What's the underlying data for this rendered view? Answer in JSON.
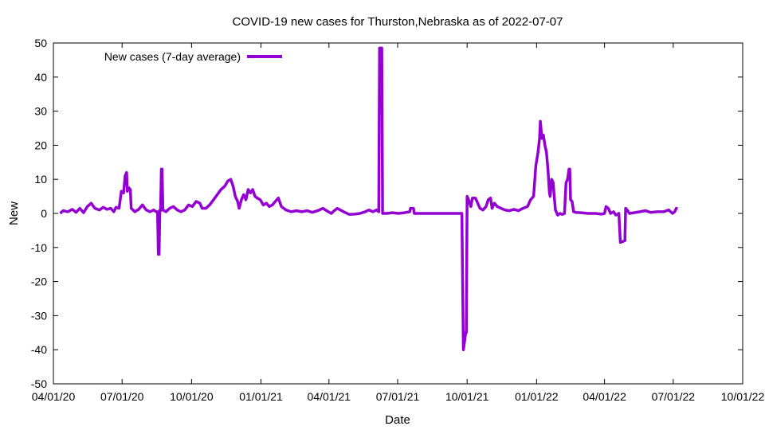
{
  "chart_data": {
    "type": "line",
    "title": "COVID-19 new cases for Thurston,Nebraska as of 2022-07-07",
    "xlabel": "Date",
    "ylabel": "New",
    "ylim": [
      -50,
      50
    ],
    "xlim": [
      "2020-04-01",
      "2022-10-01"
    ],
    "y_ticks": [
      -50,
      -40,
      -30,
      -20,
      -10,
      0,
      10,
      20,
      30,
      40,
      50
    ],
    "x_ticks": [
      {
        "date": "2020-04-01",
        "label": "04/01/20"
      },
      {
        "date": "2020-07-01",
        "label": "07/01/20"
      },
      {
        "date": "2020-10-01",
        "label": "10/01/20"
      },
      {
        "date": "2021-01-01",
        "label": "01/01/21"
      },
      {
        "date": "2021-04-01",
        "label": "04/01/21"
      },
      {
        "date": "2021-07-01",
        "label": "07/01/21"
      },
      {
        "date": "2021-10-01",
        "label": "10/01/21"
      },
      {
        "date": "2022-01-01",
        "label": "01/01/22"
      },
      {
        "date": "2022-04-01",
        "label": "04/01/22"
      },
      {
        "date": "2022-07-01",
        "label": "07/01/22"
      },
      {
        "date": "2022-10-01",
        "label": "10/01/22"
      }
    ],
    "grid": false,
    "legend_position": "top-left",
    "series": [
      {
        "name": "New cases (7-day average)",
        "color": "#9400d3",
        "points": [
          [
            "2020-04-10",
            0.0
          ],
          [
            "2020-04-14",
            0.8
          ],
          [
            "2020-04-20",
            0.5
          ],
          [
            "2020-04-26",
            1.2
          ],
          [
            "2020-05-01",
            0.3
          ],
          [
            "2020-05-06",
            1.5
          ],
          [
            "2020-05-11",
            0.2
          ],
          [
            "2020-05-16",
            2.0
          ],
          [
            "2020-05-21",
            3.0
          ],
          [
            "2020-05-26",
            1.5
          ],
          [
            "2020-06-01",
            1.0
          ],
          [
            "2020-06-06",
            1.8
          ],
          [
            "2020-06-11",
            1.2
          ],
          [
            "2020-06-16",
            1.5
          ],
          [
            "2020-06-20",
            0.5
          ],
          [
            "2020-06-23",
            1.8
          ],
          [
            "2020-06-27",
            1.5
          ],
          [
            "2020-06-30",
            6.5
          ],
          [
            "2020-07-03",
            6.0
          ],
          [
            "2020-07-05",
            11.0
          ],
          [
            "2020-07-07",
            12.0
          ],
          [
            "2020-07-08",
            6.5
          ],
          [
            "2020-07-10",
            7.5
          ],
          [
            "2020-07-12",
            7.0
          ],
          [
            "2020-07-13",
            1.5
          ],
          [
            "2020-07-18",
            0.5
          ],
          [
            "2020-07-23",
            1.2
          ],
          [
            "2020-07-28",
            2.5
          ],
          [
            "2020-08-02",
            1.0
          ],
          [
            "2020-08-07",
            0.5
          ],
          [
            "2020-08-12",
            1.0
          ],
          [
            "2020-08-15",
            0.5
          ],
          [
            "2020-08-17",
            0.5
          ],
          [
            "2020-08-18",
            -12.0
          ],
          [
            "2020-08-19",
            -12.0
          ],
          [
            "2020-08-20",
            1.0
          ],
          [
            "2020-08-21",
            0.8
          ],
          [
            "2020-08-22",
            13.0
          ],
          [
            "2020-08-23",
            13.0
          ],
          [
            "2020-08-24",
            1.0
          ],
          [
            "2020-08-28",
            0.5
          ],
          [
            "2020-09-02",
            1.5
          ],
          [
            "2020-09-07",
            2.0
          ],
          [
            "2020-09-12",
            1.0
          ],
          [
            "2020-09-17",
            0.5
          ],
          [
            "2020-09-22",
            1.0
          ],
          [
            "2020-09-27",
            2.5
          ],
          [
            "2020-10-02",
            2.0
          ],
          [
            "2020-10-07",
            3.5
          ],
          [
            "2020-10-12",
            3.0
          ],
          [
            "2020-10-15",
            1.5
          ],
          [
            "2020-10-20",
            1.5
          ],
          [
            "2020-10-25",
            2.5
          ],
          [
            "2020-10-30",
            4.0
          ],
          [
            "2020-11-04",
            5.5
          ],
          [
            "2020-11-09",
            7.0
          ],
          [
            "2020-11-14",
            8.0
          ],
          [
            "2020-11-18",
            9.5
          ],
          [
            "2020-11-22",
            10.0
          ],
          [
            "2020-11-25",
            8.0
          ],
          [
            "2020-11-28",
            5.0
          ],
          [
            "2020-12-01",
            3.5
          ],
          [
            "2020-12-03",
            1.5
          ],
          [
            "2020-12-06",
            4.0
          ],
          [
            "2020-12-09",
            5.5
          ],
          [
            "2020-12-12",
            4.0
          ],
          [
            "2020-12-15",
            7.0
          ],
          [
            "2020-12-18",
            6.0
          ],
          [
            "2020-12-21",
            7.0
          ],
          [
            "2020-12-24",
            5.0
          ],
          [
            "2020-12-27",
            4.5
          ],
          [
            "2020-12-31",
            4.0
          ],
          [
            "2021-01-04",
            2.5
          ],
          [
            "2021-01-08",
            3.0
          ],
          [
            "2021-01-12",
            2.0
          ],
          [
            "2021-01-16",
            2.5
          ],
          [
            "2021-01-20",
            3.5
          ],
          [
            "2021-01-24",
            4.5
          ],
          [
            "2021-01-28",
            2.0
          ],
          [
            "2021-02-03",
            1.0
          ],
          [
            "2021-02-10",
            0.5
          ],
          [
            "2021-02-17",
            0.8
          ],
          [
            "2021-02-24",
            0.5
          ],
          [
            "2021-03-03",
            0.8
          ],
          [
            "2021-03-10",
            0.3
          ],
          [
            "2021-03-17",
            0.8
          ],
          [
            "2021-03-24",
            1.5
          ],
          [
            "2021-03-31",
            0.5
          ],
          [
            "2021-04-04",
            0.0
          ],
          [
            "2021-04-08",
            0.8
          ],
          [
            "2021-04-12",
            1.5
          ],
          [
            "2021-04-16",
            1.0
          ],
          [
            "2021-04-22",
            0.3
          ],
          [
            "2021-04-28",
            -0.3
          ],
          [
            "2021-05-05",
            -0.2
          ],
          [
            "2021-05-12",
            0.0
          ],
          [
            "2021-05-19",
            0.5
          ],
          [
            "2021-05-24",
            1.0
          ],
          [
            "2021-05-29",
            0.5
          ],
          [
            "2021-06-03",
            1.0
          ],
          [
            "2021-06-06",
            0.5
          ],
          [
            "2021-06-07",
            48.5
          ],
          [
            "2021-06-10",
            48.5
          ],
          [
            "2021-06-11",
            0.0
          ],
          [
            "2021-06-16",
            0.0
          ],
          [
            "2021-06-24",
            0.2
          ],
          [
            "2021-07-02",
            0.0
          ],
          [
            "2021-07-10",
            0.2
          ],
          [
            "2021-07-17",
            0.5
          ],
          [
            "2021-07-18",
            1.5
          ],
          [
            "2021-07-22",
            1.5
          ],
          [
            "2021-07-23",
            0.0
          ],
          [
            "2021-08-20",
            0.0
          ],
          [
            "2021-09-24",
            0.0
          ],
          [
            "2021-09-26",
            -40.0
          ],
          [
            "2021-09-28",
            -37.0
          ],
          [
            "2021-09-29",
            -35.0
          ],
          [
            "2021-09-30",
            -35.0
          ],
          [
            "2021-10-01",
            5.0
          ],
          [
            "2021-10-03",
            4.0
          ],
          [
            "2021-10-06",
            2.0
          ],
          [
            "2021-10-08",
            4.5
          ],
          [
            "2021-10-12",
            4.5
          ],
          [
            "2021-10-15",
            3.0
          ],
          [
            "2021-10-18",
            1.5
          ],
          [
            "2021-10-22",
            1.0
          ],
          [
            "2021-10-26",
            2.0
          ],
          [
            "2021-10-29",
            4.0
          ],
          [
            "2021-11-01",
            4.5
          ],
          [
            "2021-11-03",
            1.5
          ],
          [
            "2021-11-06",
            3.0
          ],
          [
            "2021-11-10",
            2.0
          ],
          [
            "2021-11-15",
            1.5
          ],
          [
            "2021-11-20",
            1.0
          ],
          [
            "2021-11-26",
            0.8
          ],
          [
            "2021-12-02",
            1.2
          ],
          [
            "2021-12-08",
            0.8
          ],
          [
            "2021-12-14",
            1.5
          ],
          [
            "2021-12-20",
            2.0
          ],
          [
            "2021-12-24",
            4.0
          ],
          [
            "2021-12-28",
            5.0
          ],
          [
            "2021-12-31",
            14.0
          ],
          [
            "2022-01-03",
            18.0
          ],
          [
            "2022-01-05",
            22.0
          ],
          [
            "2022-01-06",
            27.0
          ],
          [
            "2022-01-08",
            22.0
          ],
          [
            "2022-01-10",
            23.0
          ],
          [
            "2022-01-12",
            20.0
          ],
          [
            "2022-01-14",
            18.0
          ],
          [
            "2022-01-16",
            13.0
          ],
          [
            "2022-01-18",
            6.0
          ],
          [
            "2022-01-19",
            5.0
          ],
          [
            "2022-01-21",
            10.0
          ],
          [
            "2022-01-23",
            9.0
          ],
          [
            "2022-01-24",
            6.0
          ],
          [
            "2022-01-26",
            1.0
          ],
          [
            "2022-01-29",
            -0.5
          ],
          [
            "2022-02-01",
            0.0
          ],
          [
            "2022-02-04",
            -0.3
          ],
          [
            "2022-02-07",
            0.0
          ],
          [
            "2022-02-09",
            9.0
          ],
          [
            "2022-02-11",
            10.0
          ],
          [
            "2022-02-13",
            13.0
          ],
          [
            "2022-02-14",
            13.0
          ],
          [
            "2022-02-15",
            4.0
          ],
          [
            "2022-02-17",
            3.5
          ],
          [
            "2022-02-19",
            0.5
          ],
          [
            "2022-02-22",
            0.3
          ],
          [
            "2022-03-01",
            0.2
          ],
          [
            "2022-03-10",
            0.0
          ],
          [
            "2022-03-20",
            0.0
          ],
          [
            "2022-03-28",
            -0.2
          ],
          [
            "2022-04-01",
            0.0
          ],
          [
            "2022-04-03",
            2.0
          ],
          [
            "2022-04-06",
            1.5
          ],
          [
            "2022-04-09",
            0.0
          ],
          [
            "2022-04-13",
            0.5
          ],
          [
            "2022-04-16",
            -0.5
          ],
          [
            "2022-04-20",
            0.0
          ],
          [
            "2022-04-22",
            -8.5
          ],
          [
            "2022-04-28",
            -8.0
          ],
          [
            "2022-04-29",
            1.5
          ],
          [
            "2022-05-01",
            1.0
          ],
          [
            "2022-05-04",
            0.0
          ],
          [
            "2022-05-10",
            0.2
          ],
          [
            "2022-05-18",
            0.5
          ],
          [
            "2022-05-25",
            0.8
          ],
          [
            "2022-06-01",
            0.3
          ],
          [
            "2022-06-10",
            0.5
          ],
          [
            "2022-06-18",
            0.5
          ],
          [
            "2022-06-25",
            1.0
          ],
          [
            "2022-06-30",
            0.0
          ],
          [
            "2022-07-03",
            0.5
          ],
          [
            "2022-07-05",
            1.5
          ],
          [
            "2022-07-07",
            1.5
          ]
        ]
      }
    ]
  }
}
